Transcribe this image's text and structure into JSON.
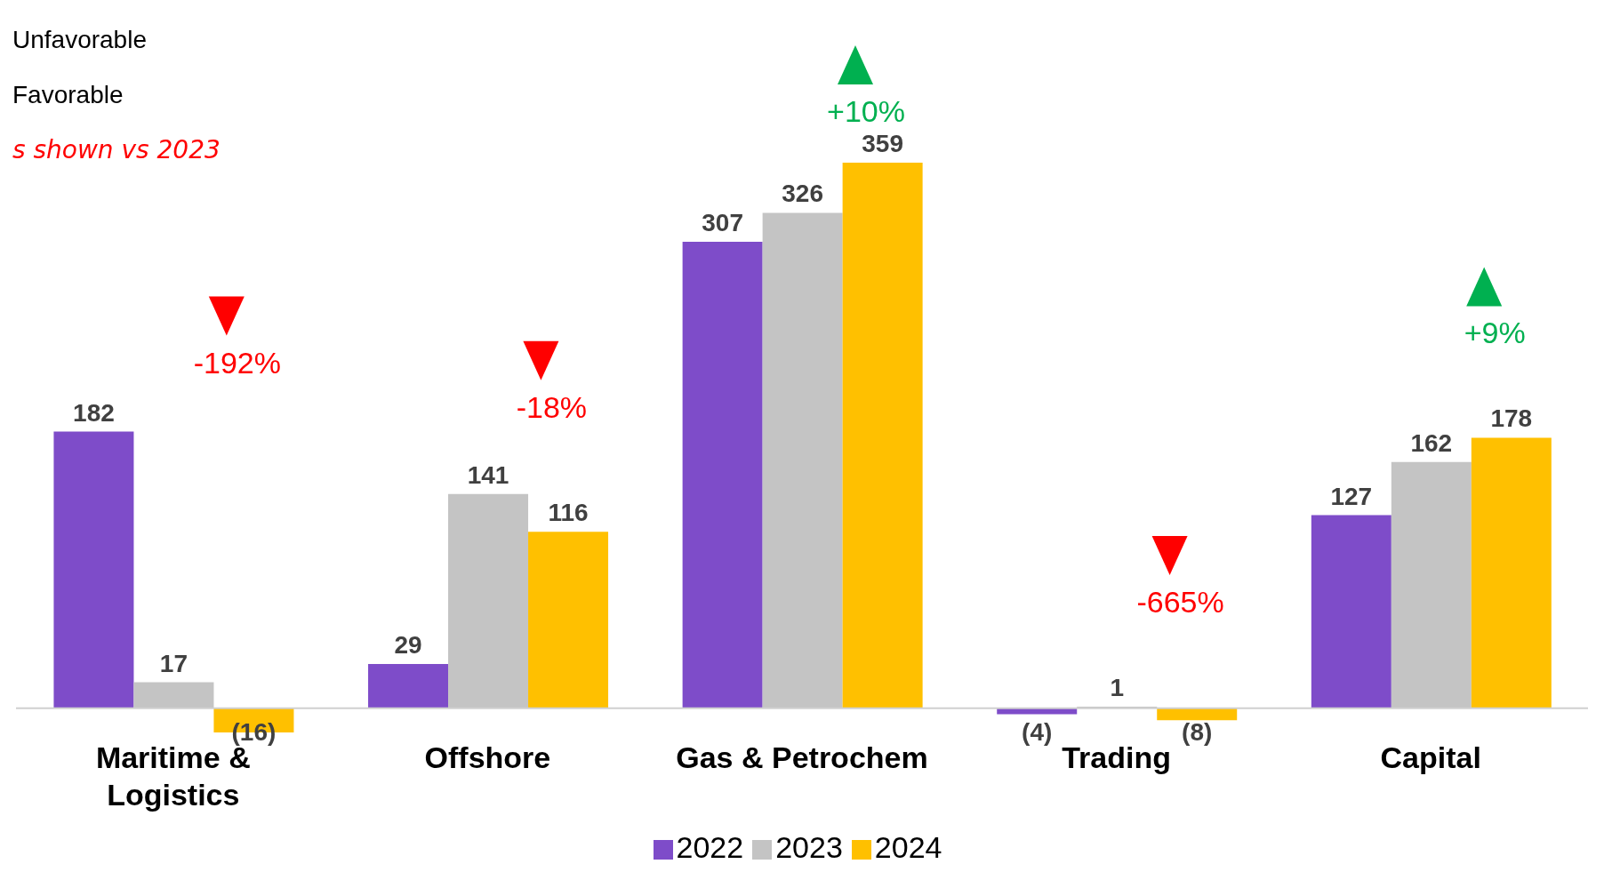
{
  "chart_data": {
    "type": "bar",
    "categories": [
      "Maritime & Logistics",
      "Offshore",
      "Gas & Petrochem",
      "Trading",
      "Capital"
    ],
    "series": [
      {
        "name": "2022",
        "color": "#7e4cc9",
        "values": [
          182,
          29,
          307,
          -4,
          127
        ],
        "value_labels": [
          "182",
          "29",
          "307",
          "(4)",
          "127"
        ]
      },
      {
        "name": "2023",
        "color": "#c4c4c4",
        "values": [
          17,
          141,
          326,
          1,
          162
        ],
        "value_labels": [
          "17",
          "141",
          "326",
          "1",
          "162"
        ]
      },
      {
        "name": "2024",
        "color": "#ffc000",
        "values": [
          -16,
          116,
          359,
          -8,
          178
        ],
        "value_labels": [
          "(16)",
          "116",
          "359",
          "(8)",
          "178"
        ]
      }
    ],
    "annotations": [
      "Unfavorable",
      "Favorable",
      "s shown vs 2023",
      "-192%",
      "-18%",
      "+10%",
      "-665%",
      "+9%"
    ],
    "legend": "bottom"
  }
}
